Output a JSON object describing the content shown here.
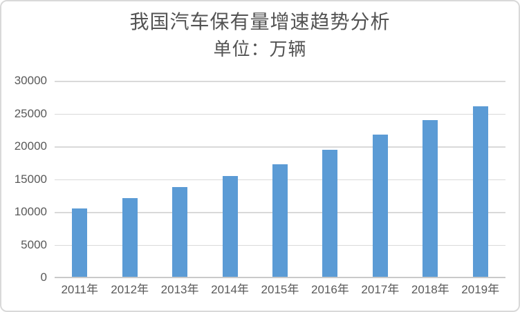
{
  "chart_data": {
    "type": "bar",
    "title": "我国汽车保有量增速趋势分析",
    "subtitle": "单位：万辆",
    "categories": [
      "2011年",
      "2012年",
      "2013年",
      "2014年",
      "2015年",
      "2016年",
      "2017年",
      "2018年",
      "2019年"
    ],
    "values": [
      10578,
      12089,
      13741,
      15447,
      17228,
      19440,
      21743,
      24028,
      26150
    ],
    "xlabel": "",
    "ylabel": "",
    "ylim": [
      0,
      30000
    ],
    "ytick_step": 5000,
    "yticks": [
      0,
      5000,
      10000,
      15000,
      20000,
      25000,
      30000
    ],
    "grid": true,
    "legend_position": "none",
    "colors": {
      "bar": "#5B9BD5",
      "gridline": "#D9D9D9",
      "axis_line": "#C9C9C9",
      "tick_text": "#595959",
      "title_text": "#535353",
      "background": "#FFFFFF",
      "border": "#D9D9D9"
    }
  }
}
